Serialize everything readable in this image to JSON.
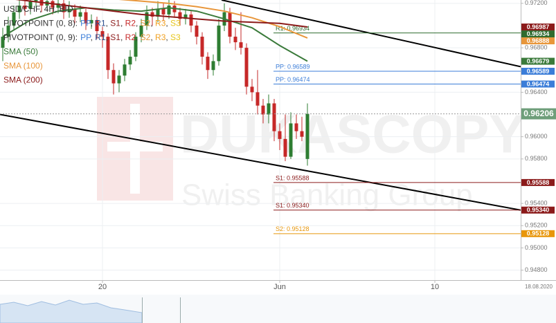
{
  "chart_data": {
    "type": "candlestick",
    "title": "USD/CHF, 4H, BID",
    "date": "18.08.2020",
    "watermark": {
      "brand": "DUKASCOPY",
      "tagline": "Swiss Banking Group"
    },
    "pivot_legends": [
      {
        "title": "PIVOTPOINT (0, 8):",
        "separator": ", ",
        "items": [
          {
            "text": "PP",
            "color": "#3b7dd8"
          },
          {
            "text": "R1",
            "color": "#2c4f8f"
          },
          {
            "text": "S1",
            "color": "#8b1a1a"
          },
          {
            "text": "R2",
            "color": "#c62828"
          },
          {
            "text": "S2",
            "color": "#e8963a"
          },
          {
            "text": "R3",
            "color": "#f0a020"
          },
          {
            "text": "S3",
            "color": "#e6c619"
          }
        ]
      },
      {
        "title": "PIVOTPOINT (0, 9):",
        "separator": ", ",
        "items": [
          {
            "text": "PP",
            "color": "#3b7dd8"
          },
          {
            "text": "R1",
            "color": "#2c4f8f"
          },
          {
            "text": "S1",
            "color": "#8b1a1a"
          },
          {
            "text": "R2",
            "color": "#c62828"
          },
          {
            "text": "S2",
            "color": "#e8963a"
          },
          {
            "text": "R3",
            "color": "#f0a020"
          },
          {
            "text": "S3",
            "color": "#e6c619"
          }
        ]
      }
    ],
    "up_color": "#2e7d32",
    "down_color": "#c62828",
    "open": [
      0.968,
      0.969,
      0.97,
      0.9712,
      0.9718,
      0.9715,
      0.9722,
      0.9725,
      0.9718,
      0.9722,
      0.9716,
      0.972,
      0.9712,
      0.9715,
      0.9708,
      0.9712,
      0.9702,
      0.9705,
      0.9695,
      0.969,
      0.966,
      0.9648,
      0.9655,
      0.9665,
      0.9672,
      0.969,
      0.97,
      0.9712,
      0.9708,
      0.9715,
      0.971,
      0.9718,
      0.9712,
      0.9706,
      0.971,
      0.97,
      0.969,
      0.9672,
      0.966,
      0.9668,
      0.97,
      0.9712,
      0.969,
      0.9685,
      0.968,
      0.9645,
      0.964,
      0.9628,
      0.962,
      0.963,
      0.9605,
      0.9598,
      0.9582,
      0.9612,
      0.9605,
      0.958
    ],
    "high": [
      0.9698,
      0.9708,
      0.9718,
      0.9724,
      0.9724,
      0.9728,
      0.9731,
      0.973,
      0.9728,
      0.9727,
      0.9726,
      0.9724,
      0.9722,
      0.9719,
      0.9718,
      0.9715,
      0.971,
      0.9708,
      0.9699,
      0.9693,
      0.9666,
      0.966,
      0.967,
      0.9678,
      0.9694,
      0.9706,
      0.9718,
      0.9716,
      0.9722,
      0.972,
      0.9725,
      0.9722,
      0.9716,
      0.9715,
      0.9713,
      0.9704,
      0.9694,
      0.9676,
      0.9674,
      0.9706,
      0.972,
      0.9716,
      0.9698,
      0.9712,
      0.9684,
      0.9652,
      0.966,
      0.9634,
      0.9638,
      0.9634,
      0.9612,
      0.962,
      0.9622,
      0.962,
      0.9618,
      0.963
    ],
    "low": [
      0.9668,
      0.9685,
      0.9696,
      0.9706,
      0.9709,
      0.971,
      0.9716,
      0.9712,
      0.9713,
      0.971,
      0.9711,
      0.9706,
      0.9707,
      0.9702,
      0.9703,
      0.9696,
      0.9697,
      0.9688,
      0.968,
      0.9652,
      0.9638,
      0.964,
      0.965,
      0.966,
      0.9668,
      0.9685,
      0.9696,
      0.97,
      0.9703,
      0.9704,
      0.9706,
      0.9707,
      0.97,
      0.9701,
      0.9694,
      0.9683,
      0.9665,
      0.9652,
      0.9655,
      0.9664,
      0.9695,
      0.9684,
      0.9678,
      0.9674,
      0.9638,
      0.9632,
      0.962,
      0.9612,
      0.9612,
      0.9596,
      0.9588,
      0.9578,
      0.958,
      0.9598,
      0.9596,
      0.9574
    ],
    "close": [
      0.969,
      0.97,
      0.9712,
      0.9718,
      0.9715,
      0.9722,
      0.9725,
      0.9718,
      0.9722,
      0.9716,
      0.972,
      0.9712,
      0.9715,
      0.9708,
      0.9712,
      0.9702,
      0.9705,
      0.9695,
      0.969,
      0.966,
      0.9648,
      0.9655,
      0.9665,
      0.9672,
      0.969,
      0.97,
      0.9712,
      0.9708,
      0.9715,
      0.971,
      0.9718,
      0.9712,
      0.9706,
      0.971,
      0.97,
      0.969,
      0.9672,
      0.966,
      0.9668,
      0.97,
      0.9712,
      0.969,
      0.9685,
      0.968,
      0.9645,
      0.964,
      0.9628,
      0.962,
      0.963,
      0.9605,
      0.9598,
      0.9582,
      0.9612,
      0.9605,
      0.96,
      0.96206
    ],
    "series": [
      {
        "name": "SMA (50)",
        "color": "#3a7a3a",
        "x": [
          0,
          5,
          10,
          15,
          20,
          25,
          30,
          35,
          40,
          45,
          50,
          55
        ],
        "values": [
          0.969,
          0.9705,
          0.9713,
          0.9716,
          0.9714,
          0.9713,
          0.9716,
          0.9713,
          0.9706,
          0.9698,
          0.9682,
          0.96679
        ]
      },
      {
        "name": "SMA (100)",
        "color": "#e8963a",
        "x": [
          0,
          5,
          10,
          15,
          20,
          25,
          30,
          35,
          40,
          45,
          50,
          55
        ],
        "values": [
          0.9735,
          0.9733,
          0.973,
          0.9727,
          0.9724,
          0.9722,
          0.972,
          0.9717,
          0.9713,
          0.9707,
          0.9699,
          0.96888
        ]
      },
      {
        "name": "SMA (200)",
        "color": "#8b1a1a",
        "x": [
          0,
          5,
          10,
          15,
          20,
          25,
          30,
          35,
          40,
          45,
          50,
          55
        ],
        "values": [
          0.9725,
          0.9722,
          0.9719,
          0.9716,
          0.9713,
          0.971,
          0.9708,
          0.9706,
          0.9704,
          0.9703,
          0.9702,
          0.96987
        ]
      }
    ],
    "levels": [
      {
        "value": 0.96934,
        "label": "R1: 0.96934",
        "value_label": "0.96934",
        "color": "#2f6b2f"
      },
      {
        "value": 0.96589,
        "label": "PP: 0.96589",
        "value_label": "0.96589",
        "color": "#3b7dd8"
      },
      {
        "value": 0.96474,
        "label": "PP: 0.96474",
        "value_label": "0.96474",
        "color": "#3b7dd8"
      },
      {
        "value": 0.95588,
        "label": "S1: 0.95588",
        "value_label": "0.95588",
        "color": "#8b1a1a"
      },
      {
        "value": 0.9534,
        "label": "S1: 0.95340",
        "value_label": "0.95340",
        "color": "#8b1a1a"
      },
      {
        "value": 0.95128,
        "label": "S2: 0.95128",
        "value_label": "0.95128",
        "color": "#e8960a"
      }
    ],
    "trendlines": [
      {
        "x": [
          39.5,
          93.5
        ],
        "values": [
          0.9723,
          0.9663
        ]
      },
      {
        "x": [
          -0.5,
          93.5
        ],
        "values": [
          0.962,
          0.9534
        ]
      }
    ],
    "price_color": "#6e9e7a",
    "xlim": [
      -0.5,
      93.5
    ],
    "xticks": [
      {
        "value": 18,
        "label": "20"
      },
      {
        "value": 50,
        "label": "Jun"
      },
      {
        "value": 78,
        "label": "10"
      }
    ],
    "ylim": [
      0.9471,
      0.9723
    ],
    "yticks": [
      {
        "value": 0.972,
        "label": "0.97200"
      },
      {
        "value": 0.968,
        "label": "0.96800"
      },
      {
        "value": 0.964,
        "label": "0.96400"
      },
      {
        "value": 0.96,
        "label": "0.96000"
      },
      {
        "value": 0.958,
        "label": "0.95800"
      },
      {
        "value": 0.954,
        "label": "0.95400"
      },
      {
        "value": 0.952,
        "label": "0.95200"
      },
      {
        "value": 0.95,
        "label": "0.95000"
      },
      {
        "value": 0.948,
        "label": "0.94800"
      }
    ],
    "grid": true
  }
}
